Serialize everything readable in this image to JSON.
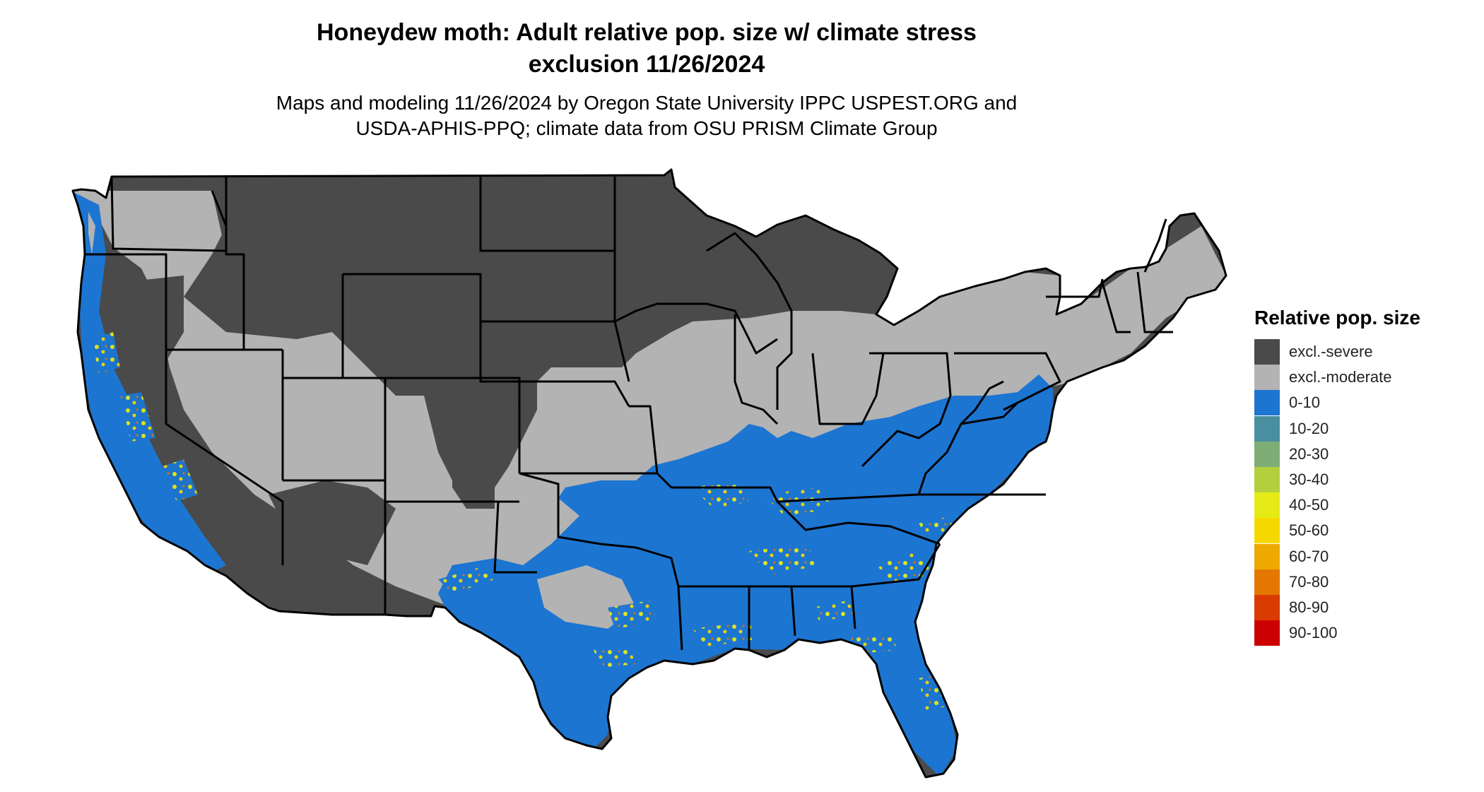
{
  "title_line1": "Honeydew moth: Adult relative pop. size w/ climate stress",
  "title_line2": "exclusion 11/26/2024",
  "subtitle_line1": "Maps and modeling 11/26/2024 by Oregon State University IPPC USPEST.ORG and",
  "subtitle_line2": "USDA-APHIS-PPQ; climate data from OSU PRISM Climate Group",
  "legend": {
    "title": "Relative pop. size",
    "items": [
      {
        "label": "excl.-severe",
        "color": "#4a4a4a"
      },
      {
        "label": "excl.-moderate",
        "color": "#b3b3b3"
      },
      {
        "label": "0-10",
        "color": "#1c75d1"
      },
      {
        "label": "10-20",
        "color": "#4a8fa0"
      },
      {
        "label": "20-30",
        "color": "#7eae76"
      },
      {
        "label": "30-40",
        "color": "#b3cf3e"
      },
      {
        "label": "40-50",
        "color": "#e6ea16"
      },
      {
        "label": "50-60",
        "color": "#f5d800"
      },
      {
        "label": "60-70",
        "color": "#eeaa00"
      },
      {
        "label": "70-80",
        "color": "#e47700"
      },
      {
        "label": "80-90",
        "color": "#d93b00"
      },
      {
        "label": "90-100",
        "color": "#cc0000"
      }
    ]
  }
}
